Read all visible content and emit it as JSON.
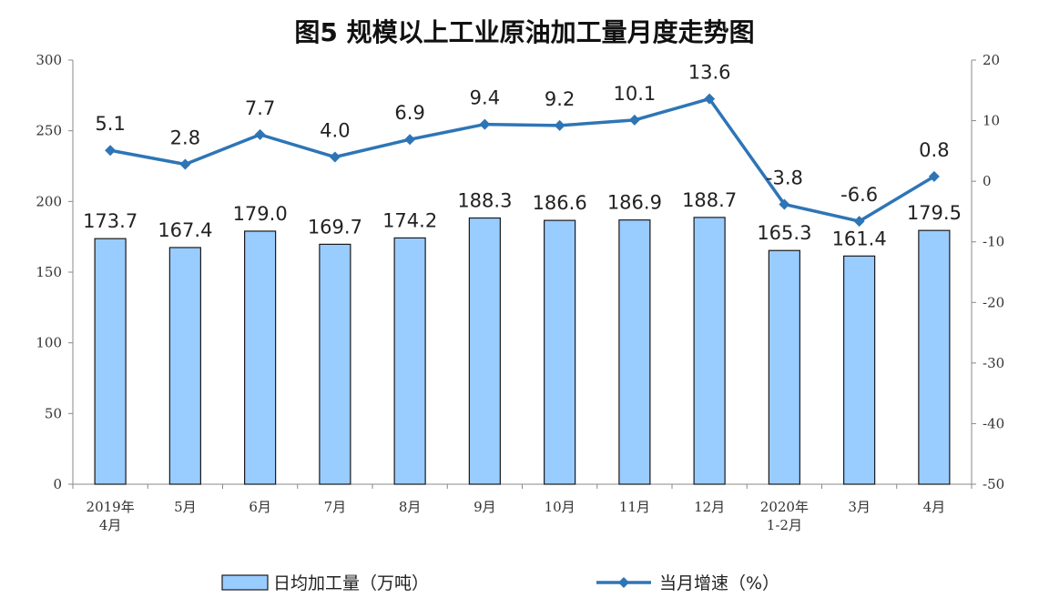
{
  "chart_data": {
    "type": "bar+line",
    "title": "图5  规模以上工业原油加工量月度走势图",
    "categories": [
      [
        "2019年",
        "4月"
      ],
      [
        "5月"
      ],
      [
        "6月"
      ],
      [
        "7月"
      ],
      [
        "8月"
      ],
      [
        "9月"
      ],
      [
        "10月"
      ],
      [
        "11月"
      ],
      [
        "12月"
      ],
      [
        "2020年",
        "1-2月"
      ],
      [
        "3月"
      ],
      [
        "4月"
      ]
    ],
    "series": [
      {
        "name": "日均加工量（万吨）",
        "type": "bar",
        "axis": "left",
        "color": "#99ccff",
        "values": [
          173.7,
          167.4,
          179.0,
          169.7,
          174.2,
          188.3,
          186.6,
          186.9,
          188.7,
          165.3,
          161.4,
          179.5
        ],
        "labels": [
          "173.7",
          "167.4",
          "179.0",
          "169.7",
          "174.2",
          "188.3",
          "186.6",
          "186.9",
          "188.7",
          "165.3",
          "161.4",
          "179.5"
        ]
      },
      {
        "name": "当月增速（%）",
        "type": "line",
        "axis": "right",
        "color": "#2e75b6",
        "values": [
          5.1,
          2.8,
          7.7,
          4.0,
          6.9,
          9.4,
          9.2,
          10.1,
          13.6,
          -3.8,
          -6.6,
          0.8
        ],
        "labels": [
          "5.1",
          "2.8",
          "7.7",
          "4.0",
          "6.9",
          "9.4",
          "9.2",
          "10.1",
          "13.6",
          "-3.8",
          "-6.6",
          "0.8"
        ]
      }
    ],
    "y_left": {
      "range": [
        0,
        300
      ],
      "ticks": [
        "0",
        "50",
        "100",
        "150",
        "200",
        "250",
        "300"
      ]
    },
    "y_right": {
      "range": [
        -50,
        20
      ],
      "ticks": [
        "-50",
        "-40",
        "-30",
        "-20",
        "-10",
        "0",
        "10",
        "20"
      ]
    },
    "grid": false,
    "legend_position": "bottom"
  }
}
